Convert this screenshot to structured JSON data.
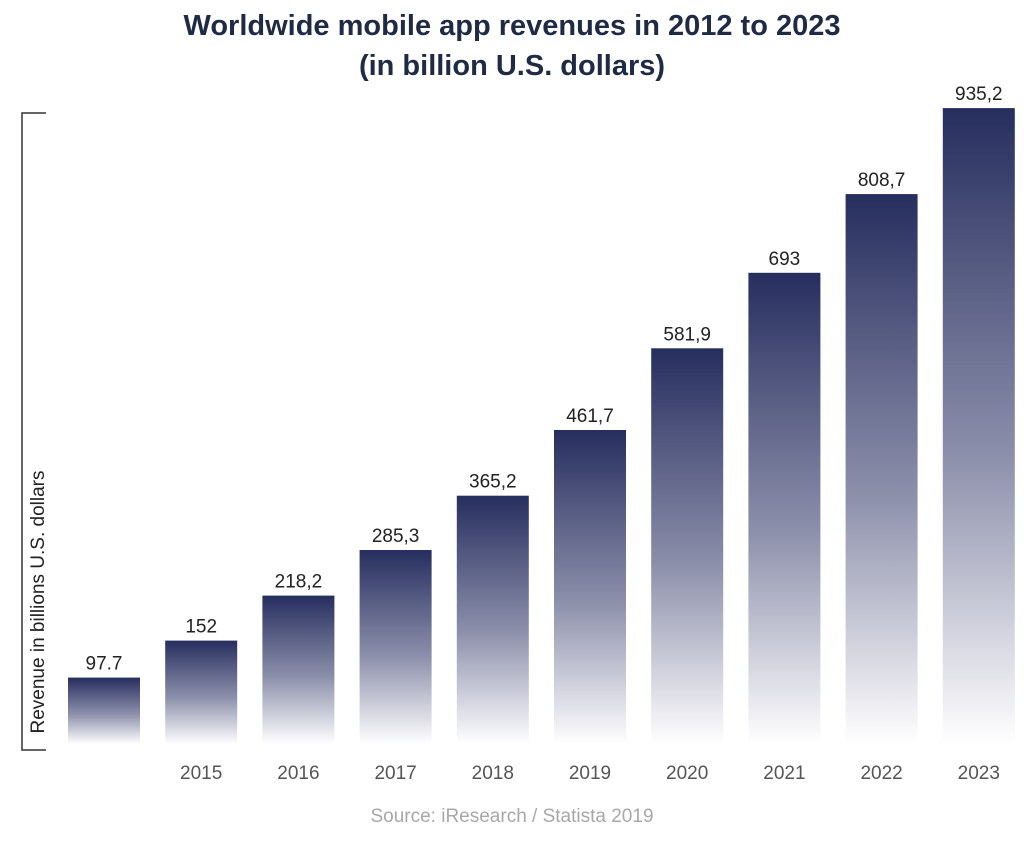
{
  "title_line1": "Worldwide mobile app revenues in 2012 to 2023",
  "title_line2": "(in billion U.S. dollars)",
  "source": "Source: iResearch  / Statista 2019",
  "colors": {
    "bar_top": "#262e5e",
    "bar_bottom": "#ffffff",
    "title": "#1f2a44",
    "tick": "#555555",
    "label": "#222222",
    "axis": "#333333"
  },
  "chart_data": {
    "type": "bar",
    "title": "Worldwide mobile app revenues in 2012 to 2023 (in billion U.S. dollars)",
    "ylabel": "Revenue in billions U.S. dollars",
    "xlabel": "",
    "categories": [
      "",
      "2015",
      "2016",
      "2017",
      "2018",
      "2019",
      "2020",
      "2021",
      "2022",
      "2023"
    ],
    "values": [
      97.7,
      152,
      218.2,
      285.3,
      365.2,
      461.7,
      581.9,
      693,
      808.7,
      935.2
    ],
    "value_labels": [
      "97.7",
      "152",
      "218,2",
      "285,3",
      "365,2",
      "461,7",
      "581,9",
      "693",
      "808,7",
      "935,2"
    ],
    "ylim": [
      0,
      950
    ],
    "grid": false,
    "legend": "none"
  }
}
